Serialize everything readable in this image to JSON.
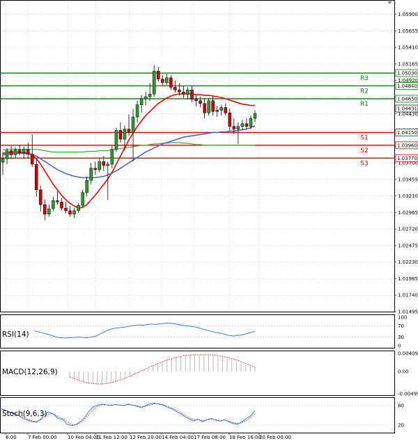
{
  "chart_data": {
    "type": "candlestick",
    "instrument_note": "",
    "y_range": [
      1.01495,
      1.0602
    ],
    "y_ticks": [
      "1.05900",
      "1.05655",
      "1.05410",
      "1.05165",
      "1.04920",
      "1.04675",
      "1.04430",
      "1.04185",
      "1.03940",
      "1.03700",
      "1.03455",
      "1.03210",
      "1.02965",
      "1.02720",
      "1.02475",
      "1.02230",
      "1.01985",
      "1.01740",
      "1.01495"
    ],
    "x_ticks": [
      "6:00",
      "7 Feb 00:00",
      "10 Feb 04:00",
      "11 Feb 12:00",
      "12 Feb 20:00",
      "14 Feb 04:00",
      "17 Feb 08:00",
      "18 Feb 16:00",
      "20 Feb 00:00"
    ],
    "candles": [
      {
        "o": 1.0371,
        "h": 1.0386,
        "l": 1.0352,
        "c": 1.0376
      },
      {
        "o": 1.0376,
        "h": 1.0392,
        "l": 1.0368,
        "c": 1.0388
      },
      {
        "o": 1.0388,
        "h": 1.0395,
        "l": 1.0375,
        "c": 1.0382
      },
      {
        "o": 1.0382,
        "h": 1.0393,
        "l": 1.0376,
        "c": 1.0389
      },
      {
        "o": 1.0389,
        "h": 1.0397,
        "l": 1.0381,
        "c": 1.0385
      },
      {
        "o": 1.0385,
        "h": 1.0394,
        "l": 1.0376,
        "c": 1.039
      },
      {
        "o": 1.039,
        "h": 1.04,
        "l": 1.0376,
        "c": 1.0383
      },
      {
        "o": 1.0383,
        "h": 1.0412,
        "l": 1.0364,
        "c": 1.0368
      },
      {
        "o": 1.0368,
        "h": 1.0375,
        "l": 1.032,
        "c": 1.033
      },
      {
        "o": 1.033,
        "h": 1.0336,
        "l": 1.0298,
        "c": 1.0308
      },
      {
        "o": 1.0308,
        "h": 1.0316,
        "l": 1.0285,
        "c": 1.0294
      },
      {
        "o": 1.0294,
        "h": 1.0308,
        "l": 1.029,
        "c": 1.0302
      },
      {
        "o": 1.0302,
        "h": 1.032,
        "l": 1.0298,
        "c": 1.0314
      },
      {
        "o": 1.0314,
        "h": 1.0328,
        "l": 1.0308,
        "c": 1.0312
      },
      {
        "o": 1.0312,
        "h": 1.0318,
        "l": 1.03,
        "c": 1.0303
      },
      {
        "o": 1.0303,
        "h": 1.0312,
        "l": 1.0295,
        "c": 1.0299
      },
      {
        "o": 1.0299,
        "h": 1.0306,
        "l": 1.029,
        "c": 1.0294
      },
      {
        "o": 1.0294,
        "h": 1.0303,
        "l": 1.0288,
        "c": 1.0299
      },
      {
        "o": 1.0299,
        "h": 1.031,
        "l": 1.0296,
        "c": 1.0307
      },
      {
        "o": 1.0307,
        "h": 1.033,
        "l": 1.0304,
        "c": 1.0326
      },
      {
        "o": 1.0326,
        "h": 1.035,
        "l": 1.032,
        "c": 1.0344
      },
      {
        "o": 1.0344,
        "h": 1.037,
        "l": 1.0338,
        "c": 1.0362
      },
      {
        "o": 1.0362,
        "h": 1.0372,
        "l": 1.0352,
        "c": 1.036
      },
      {
        "o": 1.036,
        "h": 1.0378,
        "l": 1.0356,
        "c": 1.0372
      },
      {
        "o": 1.0372,
        "h": 1.038,
        "l": 1.0358,
        "c": 1.0366
      },
      {
        "o": 1.0366,
        "h": 1.0372,
        "l": 1.0315,
        "c": 1.0368
      },
      {
        "o": 1.0368,
        "h": 1.0395,
        "l": 1.0362,
        "c": 1.039
      },
      {
        "o": 1.039,
        "h": 1.0422,
        "l": 1.0386,
        "c": 1.0418
      },
      {
        "o": 1.0418,
        "h": 1.043,
        "l": 1.04,
        "c": 1.0405
      },
      {
        "o": 1.0405,
        "h": 1.0425,
        "l": 1.0388,
        "c": 1.042
      },
      {
        "o": 1.042,
        "h": 1.0442,
        "l": 1.041,
        "c": 1.0415
      },
      {
        "o": 1.0415,
        "h": 1.045,
        "l": 1.0372,
        "c": 1.0438
      },
      {
        "o": 1.0438,
        "h": 1.0462,
        "l": 1.043,
        "c": 1.0456
      },
      {
        "o": 1.0456,
        "h": 1.047,
        "l": 1.0444,
        "c": 1.0465
      },
      {
        "o": 1.0465,
        "h": 1.0475,
        "l": 1.0455,
        "c": 1.0468
      },
      {
        "o": 1.0468,
        "h": 1.0488,
        "l": 1.0462,
        "c": 1.0472
      },
      {
        "o": 1.0472,
        "h": 1.0515,
        "l": 1.0468,
        "c": 1.0506
      },
      {
        "o": 1.0506,
        "h": 1.0512,
        "l": 1.049,
        "c": 1.0494
      },
      {
        "o": 1.0494,
        "h": 1.05,
        "l": 1.0484,
        "c": 1.0489
      },
      {
        "o": 1.0489,
        "h": 1.0502,
        "l": 1.0485,
        "c": 1.0496
      },
      {
        "o": 1.0496,
        "h": 1.05,
        "l": 1.0478,
        "c": 1.0482
      },
      {
        "o": 1.0482,
        "h": 1.0492,
        "l": 1.0474,
        "c": 1.0478
      },
      {
        "o": 1.0478,
        "h": 1.0488,
        "l": 1.047,
        "c": 1.0475
      },
      {
        "o": 1.0475,
        "h": 1.0484,
        "l": 1.0466,
        "c": 1.0472
      },
      {
        "o": 1.0472,
        "h": 1.0482,
        "l": 1.0464,
        "c": 1.0478
      },
      {
        "o": 1.0478,
        "h": 1.0484,
        "l": 1.046,
        "c": 1.0464
      },
      {
        "o": 1.0464,
        "h": 1.047,
        "l": 1.0454,
        "c": 1.0462
      },
      {
        "o": 1.0462,
        "h": 1.0468,
        "l": 1.0452,
        "c": 1.0458
      },
      {
        "o": 1.0458,
        "h": 1.0466,
        "l": 1.0436,
        "c": 1.0444
      },
      {
        "o": 1.0444,
        "h": 1.0466,
        "l": 1.044,
        "c": 1.0462
      },
      {
        "o": 1.0462,
        "h": 1.0468,
        "l": 1.044,
        "c": 1.0446
      },
      {
        "o": 1.0446,
        "h": 1.0454,
        "l": 1.0438,
        "c": 1.0448
      },
      {
        "o": 1.0448,
        "h": 1.0456,
        "l": 1.044,
        "c": 1.0452
      },
      {
        "o": 1.0452,
        "h": 1.0458,
        "l": 1.044,
        "c": 1.0444
      },
      {
        "o": 1.0444,
        "h": 1.045,
        "l": 1.0418,
        "c": 1.0424
      },
      {
        "o": 1.0424,
        "h": 1.0436,
        "l": 1.0412,
        "c": 1.042
      },
      {
        "o": 1.042,
        "h": 1.043,
        "l": 1.0398,
        "c": 1.0424
      },
      {
        "o": 1.0424,
        "h": 1.0434,
        "l": 1.0418,
        "c": 1.0428
      },
      {
        "o": 1.0428,
        "h": 1.0436,
        "l": 1.042,
        "c": 1.0424
      },
      {
        "o": 1.0424,
        "h": 1.044,
        "l": 1.042,
        "c": 1.0436
      },
      {
        "o": 1.0436,
        "h": 1.0448,
        "l": 1.043,
        "c": 1.0443
      }
    ],
    "ma_red": [
      1.0384,
      1.0385,
      1.0386,
      1.0386,
      1.0386,
      1.0385,
      1.0384,
      1.0382,
      1.0376,
      1.0368,
      1.0358,
      1.0348,
      1.0338,
      1.033,
      1.0322,
      1.0315,
      1.031,
      1.0306,
      1.0303,
      1.0304,
      1.0308,
      1.0315,
      1.0322,
      1.033,
      1.0338,
      1.0346,
      1.0356,
      1.0368,
      1.038,
      1.0392,
      1.0404,
      1.0414,
      1.0424,
      1.0432,
      1.044,
      1.0446,
      1.0452,
      1.0458,
      1.0462,
      1.0466,
      1.0469,
      1.0471,
      1.0472,
      1.0472,
      1.0472,
      1.0472,
      1.0471,
      1.0471,
      1.047,
      1.047,
      1.0469,
      1.0468,
      1.0467,
      1.0465,
      1.0463,
      1.0461,
      1.0459,
      1.0457,
      1.0456,
      1.0455,
      1.0455
    ],
    "ma_blue": [
      1.0382,
      1.0383,
      1.0383,
      1.0384,
      1.0384,
      1.0384,
      1.0383,
      1.0382,
      1.038,
      1.0376,
      1.0372,
      1.0368,
      1.0364,
      1.036,
      1.0357,
      1.0354,
      1.0352,
      1.035,
      1.0349,
      1.0348,
      1.0348,
      1.0348,
      1.0348,
      1.0349,
      1.035,
      1.0352,
      1.0355,
      1.0358,
      1.0362,
      1.0366,
      1.037,
      1.0374,
      1.0378,
      1.0382,
      1.0386,
      1.0389,
      1.0392,
      1.0395,
      1.0398,
      1.04,
      1.0402,
      1.0404,
      1.0406,
      1.0408,
      1.0409,
      1.041,
      1.0411,
      1.0412,
      1.0413,
      1.0414,
      1.0415,
      1.0415,
      1.0416,
      1.0416,
      1.0417,
      1.0417,
      1.0418,
      1.0419,
      1.042,
      1.0422,
      1.0425
    ],
    "ma_green": [
      1.0389,
      1.039,
      1.039,
      1.039,
      1.039,
      1.039,
      1.039,
      1.039,
      1.039,
      1.0389,
      1.0388,
      1.0387,
      1.0386,
      1.0386,
      1.0386,
      1.0386,
      1.0386,
      1.0386,
      1.0386,
      1.0386,
      1.0387,
      1.0387,
      1.0387,
      1.0388,
      1.0388,
      1.0388,
      1.0389,
      1.039,
      1.0391,
      1.0392,
      1.0393,
      1.0394,
      1.0395,
      1.0396,
      1.0396,
      1.0397,
      1.0398,
      1.0398,
      1.0399,
      1.0399,
      1.04,
      1.04,
      1.04,
      1.0399,
      1.0399,
      1.0398,
      1.0397,
      1.0397,
      1.0396,
      1.0396,
      1.0396,
      1.0396,
      1.0396,
      1.0396,
      1.0396,
      1.0396,
      1.0396,
      1.0396,
      1.0396,
      1.0396,
      1.0396
    ],
    "levels": [
      {
        "name": "R3",
        "value": 1.0503,
        "label": "1.05030",
        "kind": "resistance"
      },
      {
        "name": "R2",
        "value": 1.0484,
        "label": "1.04840",
        "kind": "resistance"
      },
      {
        "name": "R1",
        "value": 1.0465,
        "label": "1.04650",
        "kind": "resistance"
      },
      {
        "name": "S1",
        "value": 1.0415,
        "label": "1.04150",
        "kind": "support"
      },
      {
        "name": "S2",
        "value": 1.0396,
        "label": "1.03960",
        "kind": "support"
      },
      {
        "name": "S3",
        "value": 1.0377,
        "label": "1.03770",
        "kind": "support"
      }
    ],
    "current_price": {
      "value": 1.04431,
      "label": "1.04431"
    },
    "rsi": {
      "label": "RSI(14)",
      "ticks": [
        "100",
        "70",
        "30",
        "0"
      ],
      "ylim": [
        0,
        100
      ],
      "values": [
        52,
        48,
        44,
        40,
        35,
        30,
        28,
        27,
        28,
        29,
        30,
        29,
        28,
        30,
        33,
        40,
        48,
        55,
        60,
        62,
        64,
        66,
        68,
        71,
        73,
        72,
        74,
        76,
        75,
        77,
        78,
        80,
        78,
        75,
        72,
        70,
        68,
        66,
        62,
        58,
        54,
        50,
        46,
        44,
        40,
        36,
        34,
        36,
        38,
        42,
        46,
        50
      ]
    },
    "macd": {
      "label": "MACD(12,26,9)",
      "ticks": [
        "0.00409",
        "0.00",
        "-0.004997"
      ],
      "ylim": [
        -0.004997,
        0.00409
      ],
      "histogram": [
        -0.0014,
        -0.0018,
        -0.0022,
        -0.0025,
        -0.0027,
        -0.0028,
        -0.0029,
        -0.0029,
        -0.0028,
        -0.0026,
        -0.0023,
        -0.002,
        -0.0016,
        -0.0012,
        -0.0007,
        -0.0002,
        0.0003,
        0.0008,
        0.0013,
        0.0018,
        0.0022,
        0.0026,
        0.0029,
        0.0032,
        0.0034,
        0.0036,
        0.0037,
        0.0038,
        0.0038,
        0.0038,
        0.0037,
        0.0036,
        0.0034,
        0.0032,
        0.0029,
        0.0026,
        0.0022,
        0.0018,
        0.0015,
        0.0012,
        0.001
      ],
      "signal": [
        -0.0012,
        -0.0016,
        -0.002,
        -0.0023,
        -0.0026,
        -0.0027,
        -0.0028,
        -0.0028,
        -0.0027,
        -0.0025,
        -0.0022,
        -0.0019,
        -0.0015,
        -0.0011,
        -0.0006,
        -0.0001,
        0.0004,
        0.0009,
        0.0013,
        0.0018,
        0.0022,
        0.0026,
        0.0029,
        0.0032,
        0.0034,
        0.0036,
        0.0037,
        0.0038,
        0.0038,
        0.0038,
        0.0038,
        0.0037,
        0.0036,
        0.0034,
        0.0032,
        0.0029,
        0.0026,
        0.0022,
        0.0018,
        0.0014,
        0.0009
      ]
    },
    "stoch": {
      "label": "Stoch(9,6,3)",
      "ticks": [
        "80",
        "20"
      ],
      "ylim": [
        0,
        100
      ],
      "k": [
        70,
        66,
        58,
        55,
        48,
        40,
        35,
        30,
        28,
        38,
        55,
        60,
        52,
        40,
        38,
        22,
        18,
        20,
        30,
        42,
        62,
        76,
        82,
        85,
        83,
        80,
        84,
        82,
        80,
        85,
        82,
        78,
        74,
        80,
        86,
        88,
        85,
        82,
        75,
        70,
        62,
        55,
        45,
        38,
        32,
        38,
        30,
        36,
        40,
        35,
        32,
        36,
        30,
        24,
        22,
        30,
        40,
        48,
        65
      ],
      "d": [
        68,
        65,
        60,
        56,
        50,
        44,
        38,
        33,
        30,
        35,
        48,
        55,
        54,
        45,
        40,
        30,
        22,
        20,
        26,
        36,
        52,
        68,
        78,
        82,
        83,
        82,
        83,
        82,
        81,
        83,
        82,
        80,
        76,
        78,
        82,
        86,
        86,
        84,
        78,
        72,
        66,
        58,
        50,
        42,
        36,
        36,
        33,
        35,
        38,
        37,
        34,
        35,
        32,
        27,
        24,
        27,
        34,
        42,
        55
      ]
    },
    "colors": {
      "bull": "#2e9b2e",
      "bear": "#d40000",
      "ma_red": "#ff0000",
      "ma_blue": "#4a63d8",
      "ma_green": "#3aa83a",
      "resistance": "#008000",
      "support": "#e00000",
      "grid": "#c8c8c8",
      "indicator_blue": "#1f73d8",
      "indicator_red": "#e33333"
    },
    "grid": "dotted"
  }
}
